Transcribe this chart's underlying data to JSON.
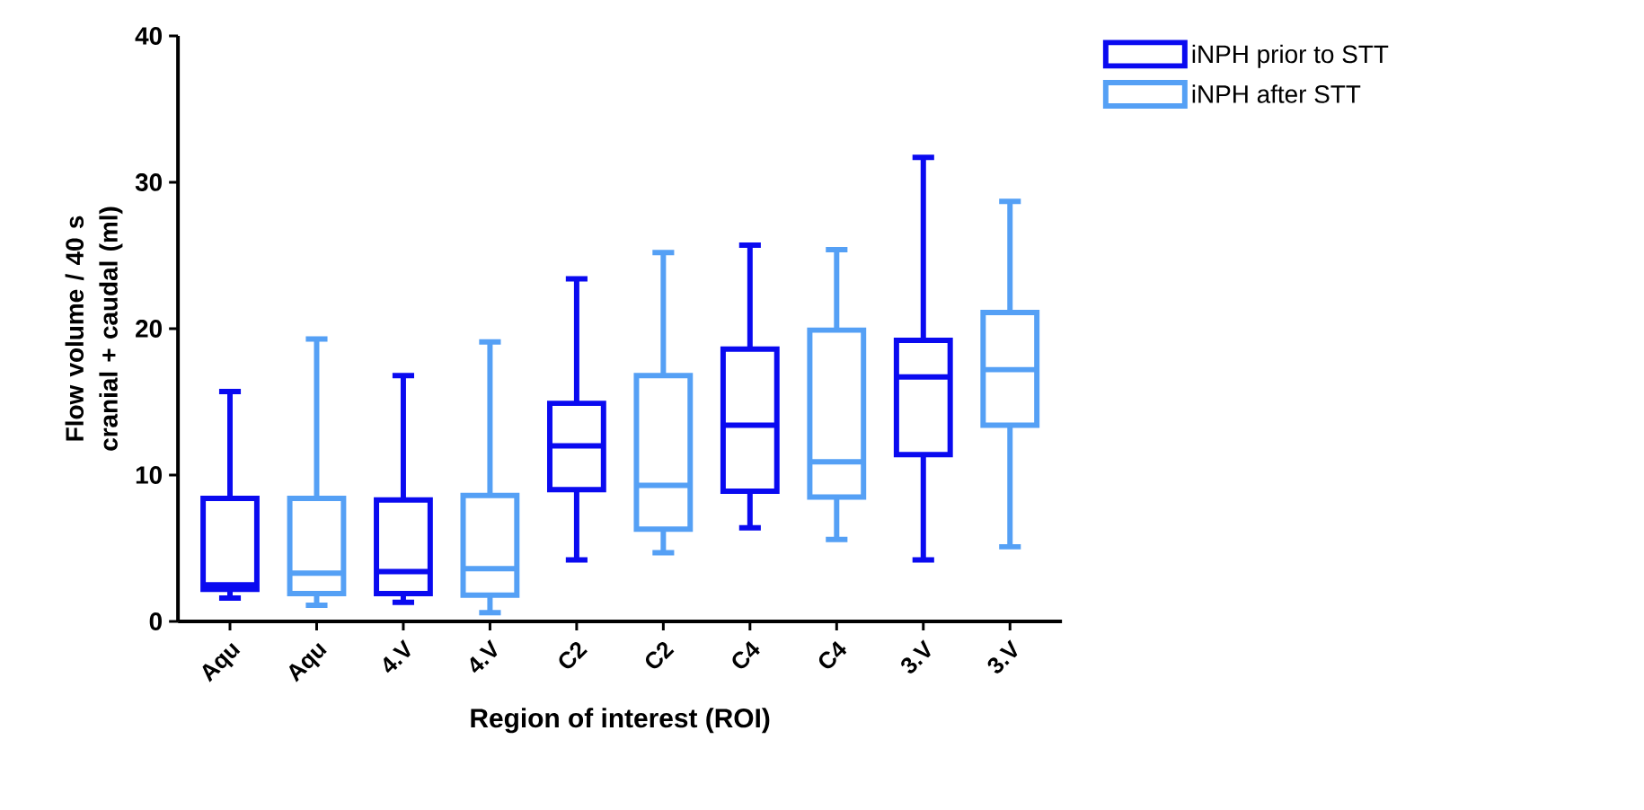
{
  "chart_data": {
    "type": "box",
    "xlabel": "Region of interest (ROI)",
    "ylabel": "Flow volume / 40 s cranial + caudal (ml)",
    "categories": [
      "Aqu",
      "Aqu",
      "4.V",
      "4.V",
      "C2",
      "C2",
      "C4",
      "C4",
      "3.V",
      "3.V"
    ],
    "ylim": [
      0,
      40
    ],
    "yticks": [
      0,
      10,
      20,
      30,
      40
    ],
    "legend": "top right",
    "series": [
      {
        "name": "iNPH prior to STT",
        "color": "#0a0af0",
        "boxes": [
          {
            "low": 1.6,
            "q1": 2.2,
            "median": 2.5,
            "q3": 8.4,
            "high": 15.7
          },
          null,
          {
            "low": 1.3,
            "q1": 1.9,
            "median": 3.4,
            "q3": 8.3,
            "high": 16.8
          },
          null,
          {
            "low": 4.2,
            "q1": 9.0,
            "median": 12.0,
            "q3": 14.9,
            "high": 23.4
          },
          null,
          {
            "low": 6.4,
            "q1": 8.9,
            "median": 13.4,
            "q3": 18.6,
            "high": 25.7
          },
          null,
          {
            "low": 4.2,
            "q1": 11.4,
            "median": 16.7,
            "q3": 19.2,
            "high": 31.7
          },
          null
        ]
      },
      {
        "name": "iNPH after STT",
        "color": "#55a0f5",
        "boxes": [
          null,
          {
            "low": 1.1,
            "q1": 1.9,
            "median": 3.3,
            "q3": 8.4,
            "high": 19.3
          },
          null,
          {
            "low": 0.6,
            "q1": 1.8,
            "median": 3.6,
            "q3": 8.6,
            "high": 19.1
          },
          null,
          {
            "low": 4.7,
            "q1": 6.3,
            "median": 9.3,
            "q3": 16.8,
            "high": 25.2
          },
          null,
          {
            "low": 5.6,
            "q1": 8.5,
            "median": 10.9,
            "q3": 19.9,
            "high": 25.4
          },
          null,
          {
            "low": 5.1,
            "q1": 13.4,
            "median": 17.2,
            "q3": 21.1,
            "high": 28.7
          }
        ]
      }
    ]
  }
}
